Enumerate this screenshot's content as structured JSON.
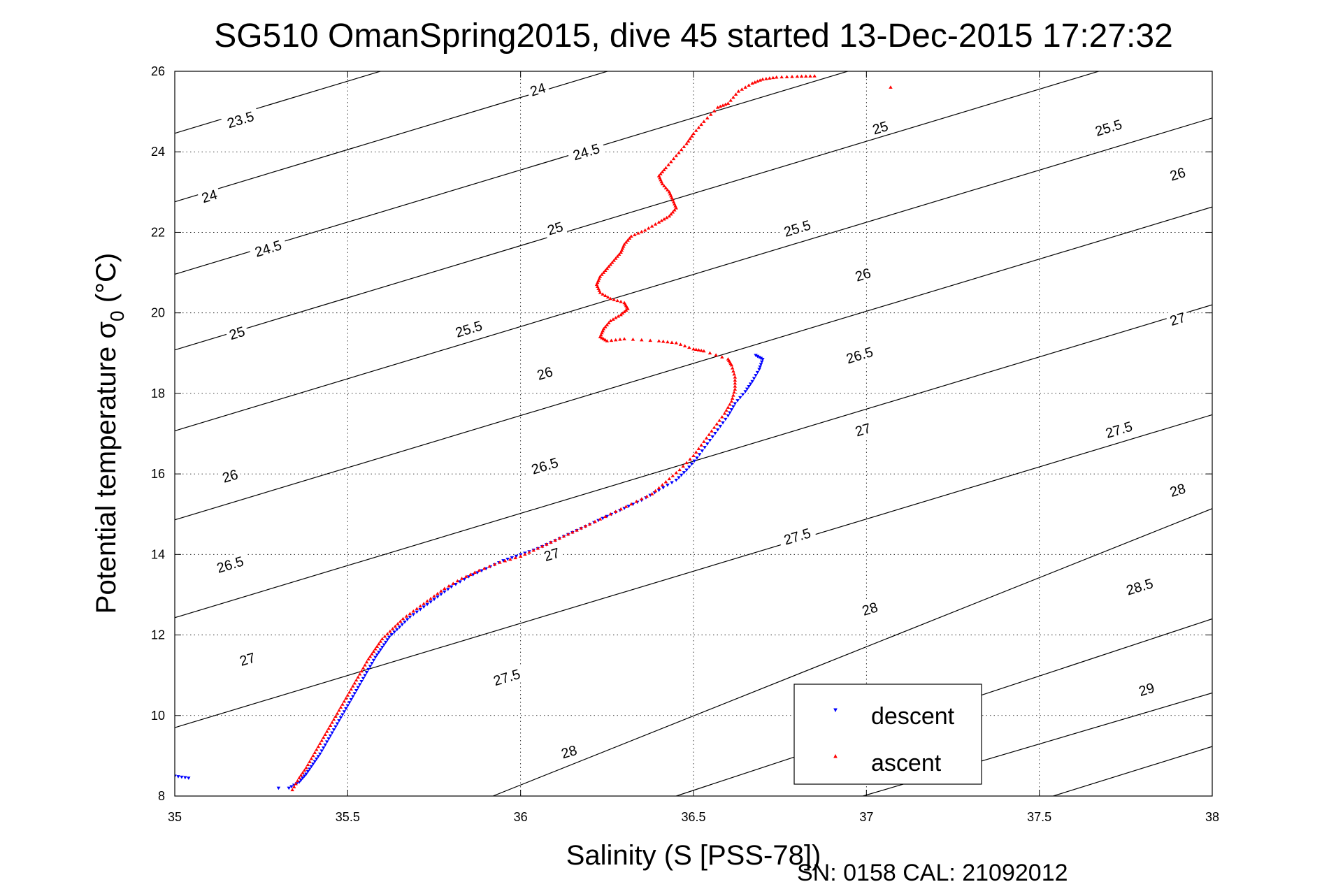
{
  "chart_data": {
    "type": "scatter",
    "title": "SG510 OmanSpring2015, dive 45 started 13-Dec-2015 17:27:32",
    "xlabel": "Salinity (S [PSS-78])",
    "ylabel_main": "Potential temperature σ",
    "ylabel_sub": "0",
    "ylabel_unit": " (°C)",
    "xlim": [
      35,
      38
    ],
    "ylim": [
      8,
      26
    ],
    "xticks": [
      "35",
      "35.5",
      "36",
      "36.5",
      "37",
      "37.5",
      "38"
    ],
    "yticks": [
      "8",
      "10",
      "12",
      "14",
      "16",
      "18",
      "20",
      "22",
      "24",
      "26"
    ],
    "grid": true,
    "legend_position": "bottom-right",
    "legend": [
      "descent",
      "ascent"
    ],
    "footer": "SN: 0158  CAL: 21092012",
    "isopycnals": [
      {
        "label": "23.5",
        "points": [
          [
            35,
            24.46
          ],
          [
            38,
            32.23
          ]
        ]
      },
      {
        "label": "24",
        "points": [
          [
            35,
            22.76
          ],
          [
            38,
            30.53
          ]
        ]
      },
      {
        "label": "24.5",
        "points": [
          [
            35,
            20.96
          ],
          [
            38,
            28.73
          ]
        ]
      },
      {
        "label": "25",
        "points": [
          [
            35,
            19.08
          ],
          [
            38,
            26.85
          ]
        ]
      },
      {
        "label": "25.5",
        "points": [
          [
            35,
            17.07
          ],
          [
            38,
            24.84
          ]
        ]
      },
      {
        "label": "26",
        "points": [
          [
            35,
            14.86
          ],
          [
            38,
            22.63
          ]
        ]
      },
      {
        "label": "26.5",
        "points": [
          [
            35,
            12.43
          ],
          [
            38,
            20.2
          ]
        ]
      },
      {
        "label": "27",
        "points": [
          [
            35,
            9.7
          ],
          [
            38,
            17.47
          ]
        ]
      },
      {
        "label": "27.5",
        "points": [
          [
            35.92,
            8
          ],
          [
            38,
            15.14
          ]
        ]
      },
      {
        "label": "28",
        "points": [
          [
            36.45,
            8
          ],
          [
            38,
            12.4
          ]
        ]
      },
      {
        "label": "28.5",
        "points": [
          [
            36.99,
            8
          ],
          [
            38,
            10.56
          ]
        ]
      },
      {
        "label": "29",
        "points": [
          [
            37.54,
            8
          ],
          [
            38,
            9.23
          ]
        ]
      }
    ],
    "contour_labels": [
      {
        "text": "23.5",
        "s": 35.19,
        "t": 24.8
      },
      {
        "text": "24",
        "s": 36.05,
        "t": 25.55
      },
      {
        "text": "24",
        "s": 35.1,
        "t": 22.9
      },
      {
        "text": "24.5",
        "s": 36.19,
        "t": 24.0
      },
      {
        "text": "24.5",
        "s": 35.27,
        "t": 21.6
      },
      {
        "text": "25",
        "s": 37.04,
        "t": 24.6
      },
      {
        "text": "25",
        "s": 36.1,
        "t": 22.1
      },
      {
        "text": "25",
        "s": 35.18,
        "t": 19.5
      },
      {
        "text": "25.5",
        "s": 37.7,
        "t": 24.6
      },
      {
        "text": "25.5",
        "s": 36.8,
        "t": 22.1
      },
      {
        "text": "25.5",
        "s": 35.85,
        "t": 19.6
      },
      {
        "text": "26",
        "s": 37.9,
        "t": 23.45
      },
      {
        "text": "26",
        "s": 36.99,
        "t": 20.95
      },
      {
        "text": "26",
        "s": 36.07,
        "t": 18.5
      },
      {
        "text": "26",
        "s": 35.16,
        "t": 15.95
      },
      {
        "text": "26.5",
        "s": 36.98,
        "t": 18.95
      },
      {
        "text": "26.5",
        "s": 36.07,
        "t": 16.2
      },
      {
        "text": "26.5",
        "s": 35.16,
        "t": 13.75
      },
      {
        "text": "27",
        "s": 37.9,
        "t": 19.85
      },
      {
        "text": "27",
        "s": 36.99,
        "t": 17.1
      },
      {
        "text": "27",
        "s": 36.09,
        "t": 14.0
      },
      {
        "text": "27",
        "s": 35.21,
        "t": 11.4
      },
      {
        "text": "27.5",
        "s": 37.73,
        "t": 17.1
      },
      {
        "text": "27.5",
        "s": 36.8,
        "t": 14.45
      },
      {
        "text": "27.5",
        "s": 35.96,
        "t": 10.95
      },
      {
        "text": "28",
        "s": 37.9,
        "t": 15.6
      },
      {
        "text": "28",
        "s": 37.01,
        "t": 12.65
      },
      {
        "text": "28",
        "s": 36.14,
        "t": 9.1
      },
      {
        "text": "28.5",
        "s": 37.79,
        "t": 13.2
      },
      {
        "text": "29",
        "s": 37.81,
        "t": 10.65
      }
    ],
    "series": [
      {
        "name": "descent",
        "color": "#0000ff",
        "marker": "triangle-down",
        "points": [
          [
            35.33,
            8.2
          ],
          [
            35.36,
            8.35
          ],
          [
            35.38,
            8.55
          ],
          [
            35.4,
            8.8
          ],
          [
            35.42,
            9.05
          ],
          [
            35.44,
            9.35
          ],
          [
            35.46,
            9.65
          ],
          [
            35.48,
            9.95
          ],
          [
            35.5,
            10.25
          ],
          [
            35.52,
            10.55
          ],
          [
            35.54,
            10.85
          ],
          [
            35.56,
            11.15
          ],
          [
            35.58,
            11.45
          ],
          [
            35.6,
            11.7
          ],
          [
            35.62,
            11.95
          ],
          [
            35.65,
            12.2
          ],
          [
            35.68,
            12.45
          ],
          [
            35.72,
            12.7
          ],
          [
            35.76,
            12.95
          ],
          [
            35.8,
            13.2
          ],
          [
            35.85,
            13.45
          ],
          [
            35.9,
            13.65
          ],
          [
            35.95,
            13.85
          ],
          [
            36.0,
            14.0
          ],
          [
            36.05,
            14.15
          ],
          [
            36.1,
            14.35
          ],
          [
            36.15,
            14.55
          ],
          [
            36.2,
            14.75
          ],
          [
            36.25,
            14.95
          ],
          [
            36.3,
            15.15
          ],
          [
            36.35,
            15.35
          ],
          [
            36.4,
            15.6
          ],
          [
            36.45,
            15.85
          ],
          [
            36.48,
            16.1
          ],
          [
            36.51,
            16.4
          ],
          [
            36.54,
            16.75
          ],
          [
            36.57,
            17.1
          ],
          [
            36.6,
            17.45
          ],
          [
            36.62,
            17.75
          ],
          [
            36.65,
            18.05
          ],
          [
            36.67,
            18.3
          ],
          [
            36.69,
            18.6
          ],
          [
            36.7,
            18.85
          ],
          [
            36.68,
            18.95
          ],
          [
            35.0,
            8.5
          ],
          [
            35.04,
            8.45
          ],
          [
            35.3,
            8.2
          ]
        ]
      },
      {
        "name": "ascent",
        "color": "#ff0000",
        "marker": "triangle-up",
        "points": [
          [
            35.34,
            8.15
          ],
          [
            35.36,
            8.45
          ],
          [
            35.38,
            8.7
          ],
          [
            35.4,
            9.0
          ],
          [
            35.42,
            9.3
          ],
          [
            35.44,
            9.6
          ],
          [
            35.46,
            9.9
          ],
          [
            35.48,
            10.2
          ],
          [
            35.5,
            10.5
          ],
          [
            35.52,
            10.8
          ],
          [
            35.54,
            11.1
          ],
          [
            35.56,
            11.4
          ],
          [
            35.58,
            11.65
          ],
          [
            35.6,
            11.9
          ],
          [
            35.63,
            12.15
          ],
          [
            35.66,
            12.4
          ],
          [
            35.7,
            12.65
          ],
          [
            35.74,
            12.9
          ],
          [
            35.78,
            13.15
          ],
          [
            35.83,
            13.4
          ],
          [
            35.88,
            13.6
          ],
          [
            35.94,
            13.8
          ],
          [
            36.0,
            13.95
          ],
          [
            36.05,
            14.15
          ],
          [
            36.1,
            14.35
          ],
          [
            36.15,
            14.55
          ],
          [
            36.2,
            14.75
          ],
          [
            36.26,
            15.0
          ],
          [
            36.32,
            15.25
          ],
          [
            36.38,
            15.5
          ],
          [
            36.42,
            15.8
          ],
          [
            36.46,
            16.1
          ],
          [
            36.5,
            16.45
          ],
          [
            36.53,
            16.8
          ],
          [
            36.56,
            17.15
          ],
          [
            36.59,
            17.5
          ],
          [
            36.61,
            17.8
          ],
          [
            36.62,
            18.1
          ],
          [
            36.62,
            18.4
          ],
          [
            36.61,
            18.7
          ],
          [
            36.6,
            18.85
          ],
          [
            36.53,
            19.05
          ],
          [
            36.5,
            19.1
          ],
          [
            36.45,
            19.25
          ],
          [
            36.4,
            19.3
          ],
          [
            36.3,
            19.35
          ],
          [
            36.25,
            19.3
          ],
          [
            36.23,
            19.4
          ],
          [
            36.24,
            19.6
          ],
          [
            36.26,
            19.8
          ],
          [
            36.29,
            19.95
          ],
          [
            36.31,
            20.1
          ],
          [
            36.3,
            20.25
          ],
          [
            36.26,
            20.35
          ],
          [
            36.23,
            20.5
          ],
          [
            36.22,
            20.7
          ],
          [
            36.23,
            20.9
          ],
          [
            36.25,
            21.1
          ],
          [
            36.27,
            21.3
          ],
          [
            36.29,
            21.5
          ],
          [
            36.3,
            21.7
          ],
          [
            36.32,
            21.9
          ],
          [
            36.36,
            22.05
          ],
          [
            36.4,
            22.25
          ],
          [
            36.43,
            22.4
          ],
          [
            36.45,
            22.6
          ],
          [
            36.44,
            22.8
          ],
          [
            36.43,
            23.0
          ],
          [
            36.41,
            23.2
          ],
          [
            36.4,
            23.4
          ],
          [
            36.42,
            23.6
          ],
          [
            36.45,
            23.9
          ],
          [
            36.48,
            24.2
          ],
          [
            36.5,
            24.45
          ],
          [
            36.53,
            24.75
          ],
          [
            36.57,
            25.1
          ],
          [
            36.6,
            25.2
          ],
          [
            36.63,
            25.5
          ],
          [
            36.67,
            25.7
          ],
          [
            36.7,
            25.8
          ],
          [
            36.74,
            25.85
          ],
          [
            36.8,
            25.87
          ],
          [
            36.85,
            25.88
          ],
          [
            37.07,
            25.6
          ]
        ]
      }
    ]
  }
}
